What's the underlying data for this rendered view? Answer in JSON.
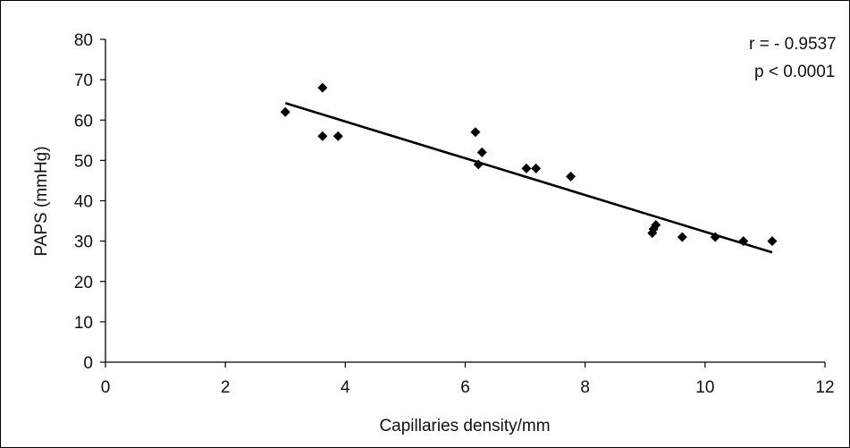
{
  "chart_data": {
    "type": "scatter",
    "xlabel": "Capillaries density/mm",
    "ylabel": "PAPS (mmHg)",
    "xlim": [
      0,
      12
    ],
    "ylim": [
      0,
      80
    ],
    "x_ticks": [
      "0",
      "2",
      "4",
      "6",
      "8",
      "10",
      "12"
    ],
    "y_ticks": [
      "0",
      "10",
      "20",
      "30",
      "40",
      "50",
      "60",
      "70",
      "80"
    ],
    "grid": false,
    "legend": "none",
    "marker": "diamond",
    "colors": {
      "points": "#000000",
      "line": "#000000",
      "frame": "#000000"
    },
    "points": [
      {
        "x": 3.0,
        "y": 62
      },
      {
        "x": 3.62,
        "y": 68
      },
      {
        "x": 3.62,
        "y": 56
      },
      {
        "x": 3.88,
        "y": 56
      },
      {
        "x": 6.17,
        "y": 57
      },
      {
        "x": 6.22,
        "y": 49
      },
      {
        "x": 6.28,
        "y": 52
      },
      {
        "x": 7.02,
        "y": 48
      },
      {
        "x": 7.18,
        "y": 48
      },
      {
        "x": 7.76,
        "y": 46
      },
      {
        "x": 9.12,
        "y": 32
      },
      {
        "x": 9.14,
        "y": 33
      },
      {
        "x": 9.18,
        "y": 34
      },
      {
        "x": 9.62,
        "y": 31
      },
      {
        "x": 10.17,
        "y": 31
      },
      {
        "x": 10.64,
        "y": 30
      },
      {
        "x": 11.12,
        "y": 30
      }
    ],
    "trendline": {
      "x": [
        3.0,
        11.12
      ],
      "y": [
        64.2,
        27.2
      ]
    },
    "annotations": [
      "r = - 0.9537",
      "p < 0.0001"
    ]
  }
}
